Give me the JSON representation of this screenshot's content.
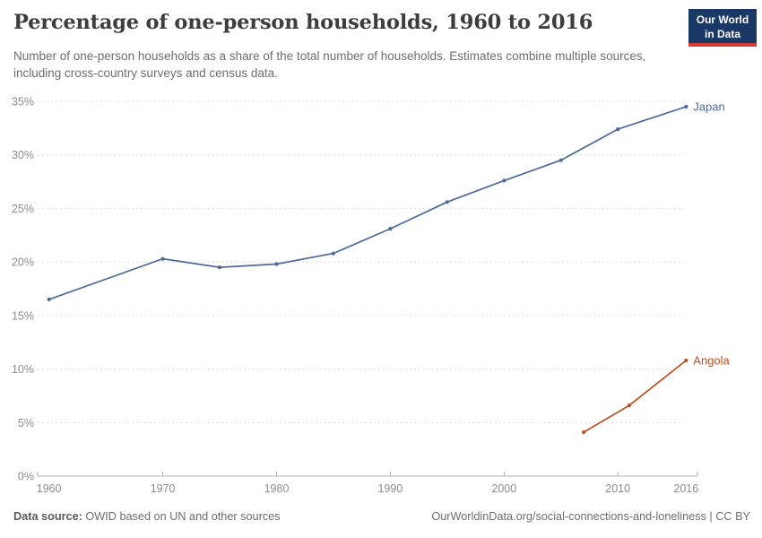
{
  "header": {
    "title": "Percentage of one-person households, 1960 to 2016",
    "subtitle": "Number of one-person households as a share of the total number of households. Estimates combine multiple sources, including cross-country surveys and census data.",
    "logo": {
      "line1": "Our World",
      "line2": "in Data",
      "bg_color": "#1A3866",
      "accent_color": "#D93B30"
    }
  },
  "chart_data": {
    "type": "line",
    "title": "Percentage of one-person households, 1960 to 2016",
    "xlabel": "",
    "ylabel": "",
    "xlim": [
      1959,
      2017
    ],
    "ylim": [
      0,
      35
    ],
    "x_ticks": [
      1960,
      1970,
      1980,
      1990,
      2000,
      2010,
      2016
    ],
    "y_ticks": [
      0,
      5,
      10,
      15,
      20,
      25,
      30,
      35
    ],
    "y_tick_suffix": "%",
    "grid": "horizontal-dashed",
    "grid_color": "#DBDBDB",
    "axis_color": "#B0B0B0",
    "tick_label_color": "#8C8C8C",
    "legend_position": "line-end-labels",
    "series": [
      {
        "name": "Japan",
        "color": "#4C6A9C",
        "points": [
          [
            1960,
            16.5
          ],
          [
            1970,
            20.3
          ],
          [
            1975,
            19.5
          ],
          [
            1980,
            19.8
          ],
          [
            1985,
            20.8
          ],
          [
            1990,
            23.1
          ],
          [
            1995,
            25.6
          ],
          [
            2000,
            27.6
          ],
          [
            2005,
            29.5
          ],
          [
            2010,
            32.4
          ],
          [
            2016,
            34.5
          ]
        ]
      },
      {
        "name": "Angola",
        "color": "#BE4E1E",
        "points": [
          [
            2007,
            4.1
          ],
          [
            2011,
            6.6
          ],
          [
            2016,
            10.8
          ]
        ]
      }
    ]
  },
  "footer": {
    "data_source_label": "Data source:",
    "data_source_text": " OWID based on UN and other sources",
    "url_text": "OurWorldinData.org/social-connections-and-loneliness | CC BY"
  }
}
